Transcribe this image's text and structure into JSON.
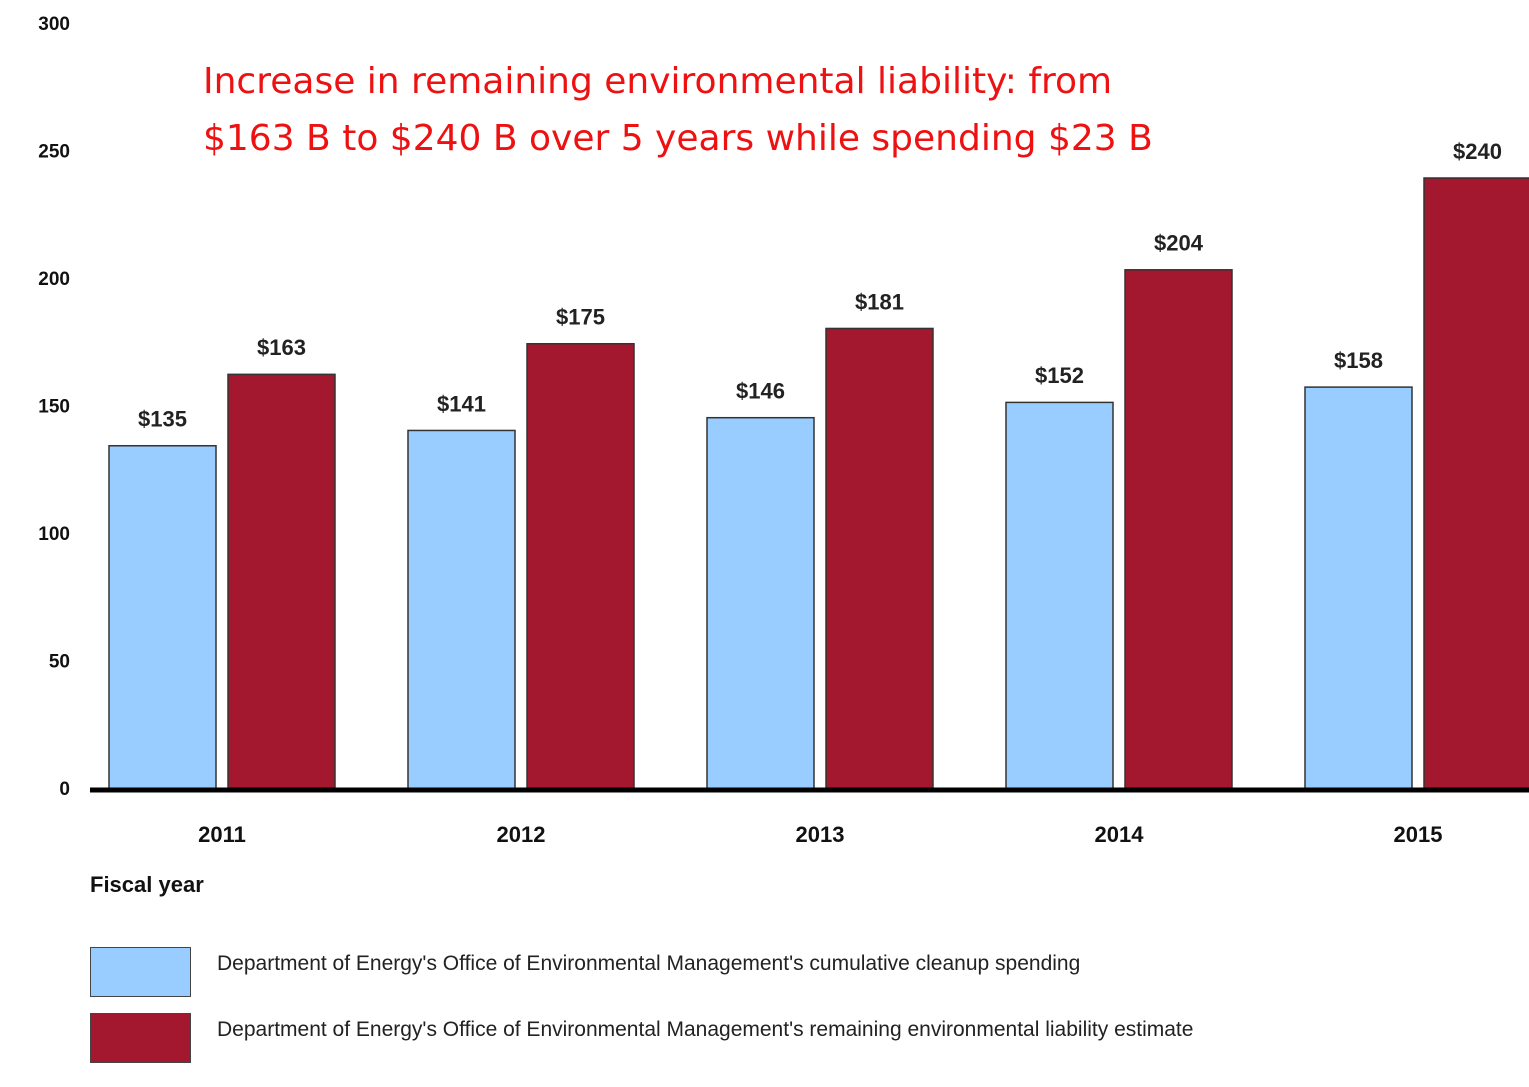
{
  "chart_data": {
    "type": "bar",
    "annotation": [
      "Increase in remaining environmental liability: from",
      "$163 B to $240 B over 5 years while spending $23 B"
    ],
    "x_label": "Fiscal year",
    "categories": [
      "2011",
      "2012",
      "2013",
      "2014",
      "2015"
    ],
    "series": [
      {
        "name": "Department of Energy's Office of Environmental Management's cumulative cleanup spending",
        "color": "#99ccff",
        "values": [
          135,
          141,
          146,
          152,
          158
        ],
        "value_labels": [
          "$135",
          "$141",
          "$146",
          "$152",
          "$158"
        ]
      },
      {
        "name": "Department of Energy's Office of Environmental Management's remaining environmental liability estimate",
        "color": "#a3182e",
        "values": [
          163,
          175,
          181,
          204,
          240
        ],
        "value_labels": [
          "$163",
          "$175",
          "$181",
          "$204",
          "$240"
        ]
      }
    ],
    "ylim": [
      0,
      300
    ],
    "yticks": [
      0,
      50,
      100,
      150,
      200,
      250,
      300
    ],
    "grid": false
  }
}
